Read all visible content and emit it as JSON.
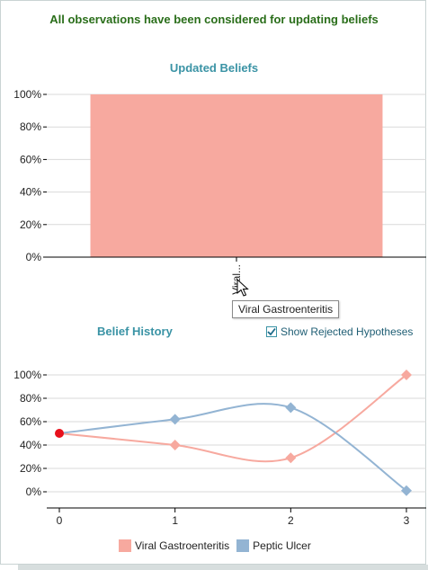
{
  "status_message": "All observations have been considered for updating beliefs",
  "tooltip_text": "Viral Gastroenteritis",
  "show_rejected": {
    "label": "Show Rejected Hypotheses",
    "checked": true
  },
  "colors": {
    "viral": "#f7a99f",
    "peptic": "#93b4d3",
    "start_point": "#e8101c",
    "title": "#3a93a5",
    "status": "#2a6e1a"
  },
  "chart_data": [
    {
      "type": "bar",
      "title": "Updated Beliefs",
      "categories": [
        "Viral..."
      ],
      "values": [
        100
      ],
      "ylim": [
        0,
        100
      ],
      "yticks": [
        "0%",
        "20%",
        "40%",
        "60%",
        "80%",
        "100%"
      ],
      "grid": true
    },
    {
      "type": "line",
      "title": "Belief History",
      "x": [
        0,
        1,
        2,
        3
      ],
      "xticks": [
        "0",
        "1",
        "2",
        "3"
      ],
      "ylim": [
        0,
        100
      ],
      "yticks": [
        "0%",
        "20%",
        "40%",
        "60%",
        "80%",
        "100%"
      ],
      "series": [
        {
          "name": "Viral Gastroenteritis",
          "values": [
            50,
            40,
            29,
            100
          ]
        },
        {
          "name": "Peptic Ulcer",
          "values": [
            50,
            62,
            72,
            1
          ]
        }
      ],
      "legend_position": "bottom-center",
      "grid": true
    }
  ]
}
